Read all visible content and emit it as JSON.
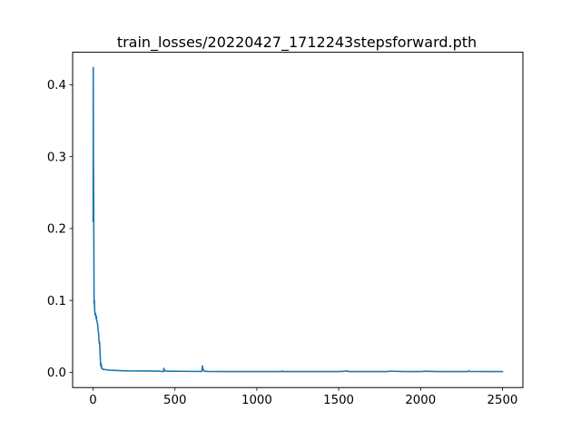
{
  "chart_data": {
    "type": "line",
    "title": "train_losses/20220427_1712243stepsforward.pth",
    "xlabel": "",
    "ylabel": "",
    "xlim": [
      -125,
      2625
    ],
    "ylim": [
      -0.0212,
      0.4452
    ],
    "xticks": [
      0,
      500,
      1000,
      1500,
      2000,
      2500
    ],
    "yticks": [
      0.0,
      0.1,
      0.2,
      0.3,
      0.4
    ],
    "xtick_labels": [
      "0",
      "500",
      "1000",
      "1500",
      "2000",
      "2500"
    ],
    "ytick_labels": [
      "0.0",
      "0.1",
      "0.2",
      "0.3",
      "0.4"
    ],
    "grid": false,
    "legend": false,
    "series": [
      {
        "color": "#1f77b4",
        "x": [
          0,
          1,
          2,
          3,
          4,
          5,
          6,
          8,
          10,
          12,
          15,
          18,
          20,
          22,
          25,
          28,
          30,
          33,
          36,
          38,
          40,
          42,
          44,
          46,
          48,
          50,
          52,
          55,
          58,
          60,
          65,
          70,
          80,
          100,
          150,
          200,
          300,
          400,
          430,
          432,
          435,
          440,
          460,
          500,
          600,
          665,
          668,
          670,
          675,
          680,
          700,
          800,
          900,
          1000,
          1100,
          1150,
          1155,
          1160,
          1200,
          1300,
          1400,
          1500,
          1555,
          1560,
          1600,
          1700,
          1800,
          1810,
          1900,
          2000,
          2030,
          2100,
          2200,
          2290,
          2295,
          2300,
          2400,
          2500
        ],
        "y": [
          0.21,
          0.424,
          0.3,
          0.27,
          0.22,
          0.16,
          0.095,
          0.1,
          0.085,
          0.08,
          0.082,
          0.075,
          0.078,
          0.072,
          0.07,
          0.066,
          0.06,
          0.055,
          0.045,
          0.04,
          0.042,
          0.03,
          0.02,
          0.01,
          0.008,
          0.012,
          0.006,
          0.005,
          0.005,
          0.004,
          0.004,
          0.004,
          0.0035,
          0.003,
          0.0025,
          0.002,
          0.0018,
          0.0017,
          0.001,
          0.0055,
          0.0035,
          0.002,
          0.0015,
          0.0015,
          0.0013,
          0.0012,
          0.009,
          0.0055,
          0.003,
          0.0015,
          0.0012,
          0.0011,
          0.001,
          0.001,
          0.001,
          0.001,
          0.002,
          0.001,
          0.001,
          0.001,
          0.001,
          0.001,
          0.0018,
          0.001,
          0.001,
          0.001,
          0.001,
          0.0016,
          0.001,
          0.001,
          0.0015,
          0.001,
          0.001,
          0.001,
          0.0022,
          0.0012,
          0.001,
          0.001
        ]
      }
    ]
  }
}
